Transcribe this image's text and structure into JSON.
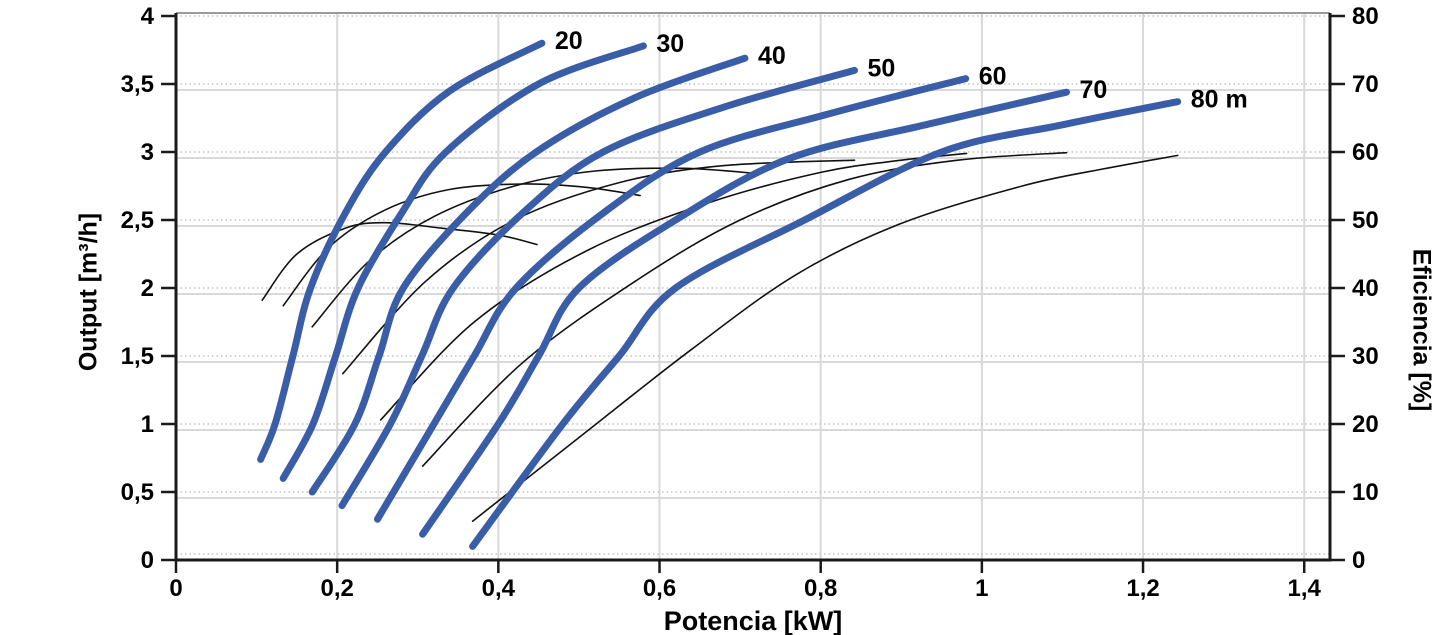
{
  "chart_data": {
    "type": "line",
    "title": "",
    "x_axis": {
      "label": "Potencia [kW]",
      "min": 0,
      "max": 1.432,
      "tick_values": [
        0,
        0.2,
        0.4,
        0.6,
        0.8,
        1.0,
        1.2,
        1.4
      ],
      "tick_labels": [
        "0",
        "0,2",
        "0,4",
        "0,6",
        "0,8",
        "1",
        "1,2",
        "1,4"
      ],
      "grid": true
    },
    "y_axis_left": {
      "label": "Output [m³/h]",
      "min": 0,
      "max": 4,
      "tick_values": [
        0,
        0.5,
        1.0,
        1.5,
        2.0,
        2.5,
        3.0,
        3.5,
        4.0
      ],
      "tick_labels": [
        "0",
        "0,5",
        "1",
        "1,5",
        "2",
        "2,5",
        "3",
        "3,5",
        "4"
      ],
      "grid": "solid"
    },
    "y_axis_right": {
      "label": "Eficiencia [%]",
      "min": 0,
      "max": 80,
      "tick_values": [
        0,
        10,
        20,
        30,
        40,
        50,
        60,
        70,
        80
      ],
      "tick_labels": [
        "0",
        "10",
        "20",
        "30",
        "40",
        "50",
        "60",
        "70",
        "80"
      ],
      "grid": "dotted"
    },
    "legend": "none",
    "pump_curves": [
      {
        "head_m": 20,
        "label": "20",
        "points": [
          [
            0.105,
            0.74
          ],
          [
            0.123,
            1.0
          ],
          [
            0.145,
            1.5
          ],
          [
            0.167,
            2.0
          ],
          [
            0.21,
            2.55
          ],
          [
            0.26,
            3.0
          ],
          [
            0.34,
            3.45
          ],
          [
            0.454,
            3.8
          ]
        ]
      },
      {
        "head_m": 30,
        "label": "30",
        "points": [
          [
            0.133,
            0.6
          ],
          [
            0.17,
            1.0
          ],
          [
            0.198,
            1.5
          ],
          [
            0.226,
            2.0
          ],
          [
            0.28,
            2.55
          ],
          [
            0.335,
            3.0
          ],
          [
            0.45,
            3.5
          ],
          [
            0.58,
            3.78
          ]
        ]
      },
      {
        "head_m": 40,
        "label": "40",
        "points": [
          [
            0.169,
            0.5
          ],
          [
            0.222,
            1.0
          ],
          [
            0.252,
            1.5
          ],
          [
            0.282,
            2.0
          ],
          [
            0.36,
            2.55
          ],
          [
            0.447,
            3.0
          ],
          [
            0.57,
            3.4
          ],
          [
            0.706,
            3.69
          ]
        ]
      },
      {
        "head_m": 50,
        "label": "50",
        "points": [
          [
            0.206,
            0.4
          ],
          [
            0.266,
            1.0
          ],
          [
            0.305,
            1.5
          ],
          [
            0.344,
            2.0
          ],
          [
            0.43,
            2.55
          ],
          [
            0.53,
            3.0
          ],
          [
            0.68,
            3.33
          ],
          [
            0.842,
            3.6
          ]
        ]
      },
      {
        "head_m": 60,
        "label": "60",
        "points": [
          [
            0.25,
            0.3
          ],
          [
            0.32,
            1.0
          ],
          [
            0.37,
            1.5
          ],
          [
            0.422,
            2.0
          ],
          [
            0.53,
            2.55
          ],
          [
            0.65,
            3.0
          ],
          [
            0.81,
            3.28
          ],
          [
            0.98,
            3.54
          ]
        ]
      },
      {
        "head_m": 70,
        "label": "70",
        "points": [
          [
            0.306,
            0.19
          ],
          [
            0.4,
            1.0
          ],
          [
            0.45,
            1.5
          ],
          [
            0.5,
            2.0
          ],
          [
            0.62,
            2.5
          ],
          [
            0.76,
            2.95
          ],
          [
            0.93,
            3.2
          ],
          [
            1.105,
            3.44
          ]
        ]
      },
      {
        "head_m": 80,
        "label": "80 m",
        "points": [
          [
            0.368,
            0.1
          ],
          [
            0.48,
            1.0
          ],
          [
            0.55,
            1.5
          ],
          [
            0.62,
            2.0
          ],
          [
            0.78,
            2.5
          ],
          [
            0.95,
            3.0
          ],
          [
            1.1,
            3.2
          ],
          [
            1.243,
            3.37
          ]
        ]
      }
    ],
    "efficiency_curves": [
      {
        "head_m": 20,
        "points": [
          [
            0.107,
            38.2
          ],
          [
            0.15,
            45.0
          ],
          [
            0.21,
            48.8
          ],
          [
            0.26,
            49.6
          ],
          [
            0.33,
            48.8
          ],
          [
            0.4,
            47.8
          ],
          [
            0.448,
            46.4
          ]
        ]
      },
      {
        "head_m": 30,
        "points": [
          [
            0.133,
            37.4
          ],
          [
            0.19,
            46.0
          ],
          [
            0.26,
            51.5
          ],
          [
            0.34,
            54.5
          ],
          [
            0.43,
            55.3
          ],
          [
            0.51,
            54.8
          ],
          [
            0.576,
            53.6
          ]
        ]
      },
      {
        "head_m": 40,
        "points": [
          [
            0.169,
            34.3
          ],
          [
            0.24,
            44.0
          ],
          [
            0.32,
            50.5
          ],
          [
            0.42,
            55.0
          ],
          [
            0.52,
            57.2
          ],
          [
            0.63,
            57.6
          ],
          [
            0.725,
            56.8
          ]
        ]
      },
      {
        "head_m": 50,
        "points": [
          [
            0.207,
            27.4
          ],
          [
            0.31,
            41.0
          ],
          [
            0.42,
            50.0
          ],
          [
            0.55,
            55.5
          ],
          [
            0.68,
            58.0
          ],
          [
            0.842,
            58.8
          ]
        ]
      },
      {
        "head_m": 60,
        "points": [
          [
            0.254,
            20.6
          ],
          [
            0.37,
            35.0
          ],
          [
            0.51,
            45.5
          ],
          [
            0.66,
            52.5
          ],
          [
            0.8,
            57.0
          ],
          [
            0.9,
            58.8
          ],
          [
            0.981,
            59.8
          ]
        ]
      },
      {
        "head_m": 70,
        "points": [
          [
            0.306,
            13.8
          ],
          [
            0.43,
            29.0
          ],
          [
            0.57,
            41.0
          ],
          [
            0.7,
            50.0
          ],
          [
            0.836,
            56.0
          ],
          [
            0.97,
            58.8
          ],
          [
            1.105,
            59.9
          ]
        ]
      },
      {
        "head_m": 80,
        "points": [
          [
            0.368,
            5.7
          ],
          [
            0.5,
            18.0
          ],
          [
            0.64,
            31.0
          ],
          [
            0.77,
            42.0
          ],
          [
            0.9,
            49.5
          ],
          [
            1.05,
            55.0
          ],
          [
            1.15,
            57.5
          ],
          [
            1.243,
            59.5
          ]
        ]
      }
    ],
    "styles": {
      "pump_curve_color": "#3a5da8",
      "efficiency_curve_color": "#121212",
      "axis_color": "#1a1a1a",
      "top_border_color": "#9a9a9a",
      "grid_solid_color": "#d9d9d9",
      "grid_dotted_color": "#c2c2c2",
      "background": "#ffffff",
      "label_color": "#000000"
    }
  }
}
